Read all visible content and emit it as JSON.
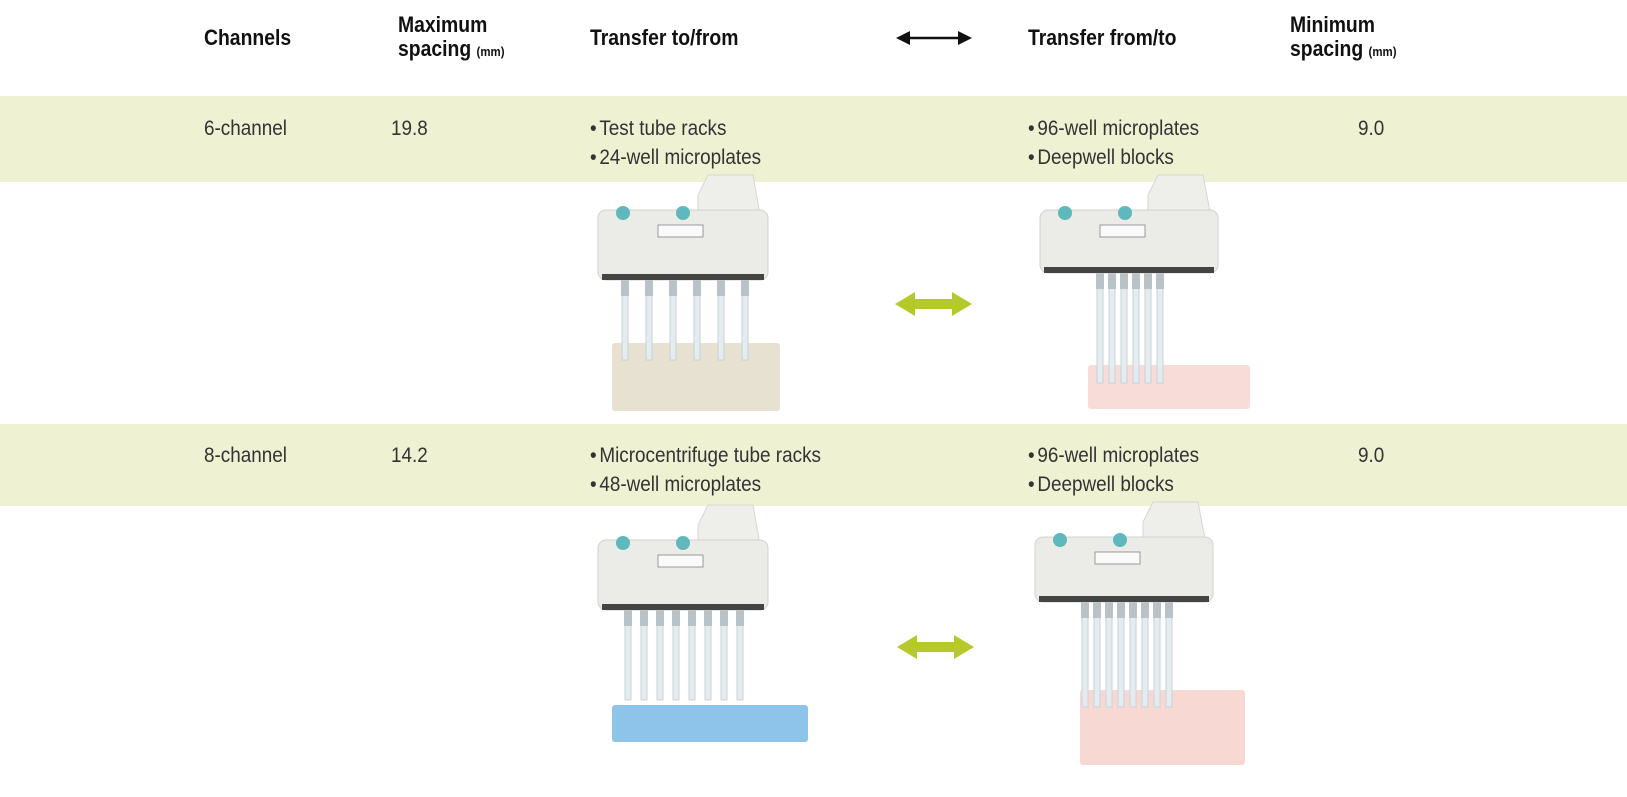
{
  "header": {
    "channels": "Channels",
    "max_spacing": "Maximum spacing",
    "max_unit": "(mm)",
    "transfer_to_from": "Transfer to/from",
    "transfer_from_to": "Transfer from/to",
    "min_spacing": "Minimum spacing",
    "min_unit": "(mm)"
  },
  "rows": [
    {
      "channels": "6-channel",
      "max_spacing": "19.8",
      "to_from": [
        "Test tube racks",
        "24-well microplates"
      ],
      "from_to": [
        "96-well microplates",
        "Deepwell blocks"
      ],
      "min_spacing": "9.0"
    },
    {
      "channels": "8-channel",
      "max_spacing": "14.2",
      "to_from": [
        "Microcentrifuge tube racks",
        "48-well microplates"
      ],
      "from_to": [
        "96-well microplates",
        "Deepwell blocks"
      ],
      "min_spacing": "9.0"
    }
  ]
}
